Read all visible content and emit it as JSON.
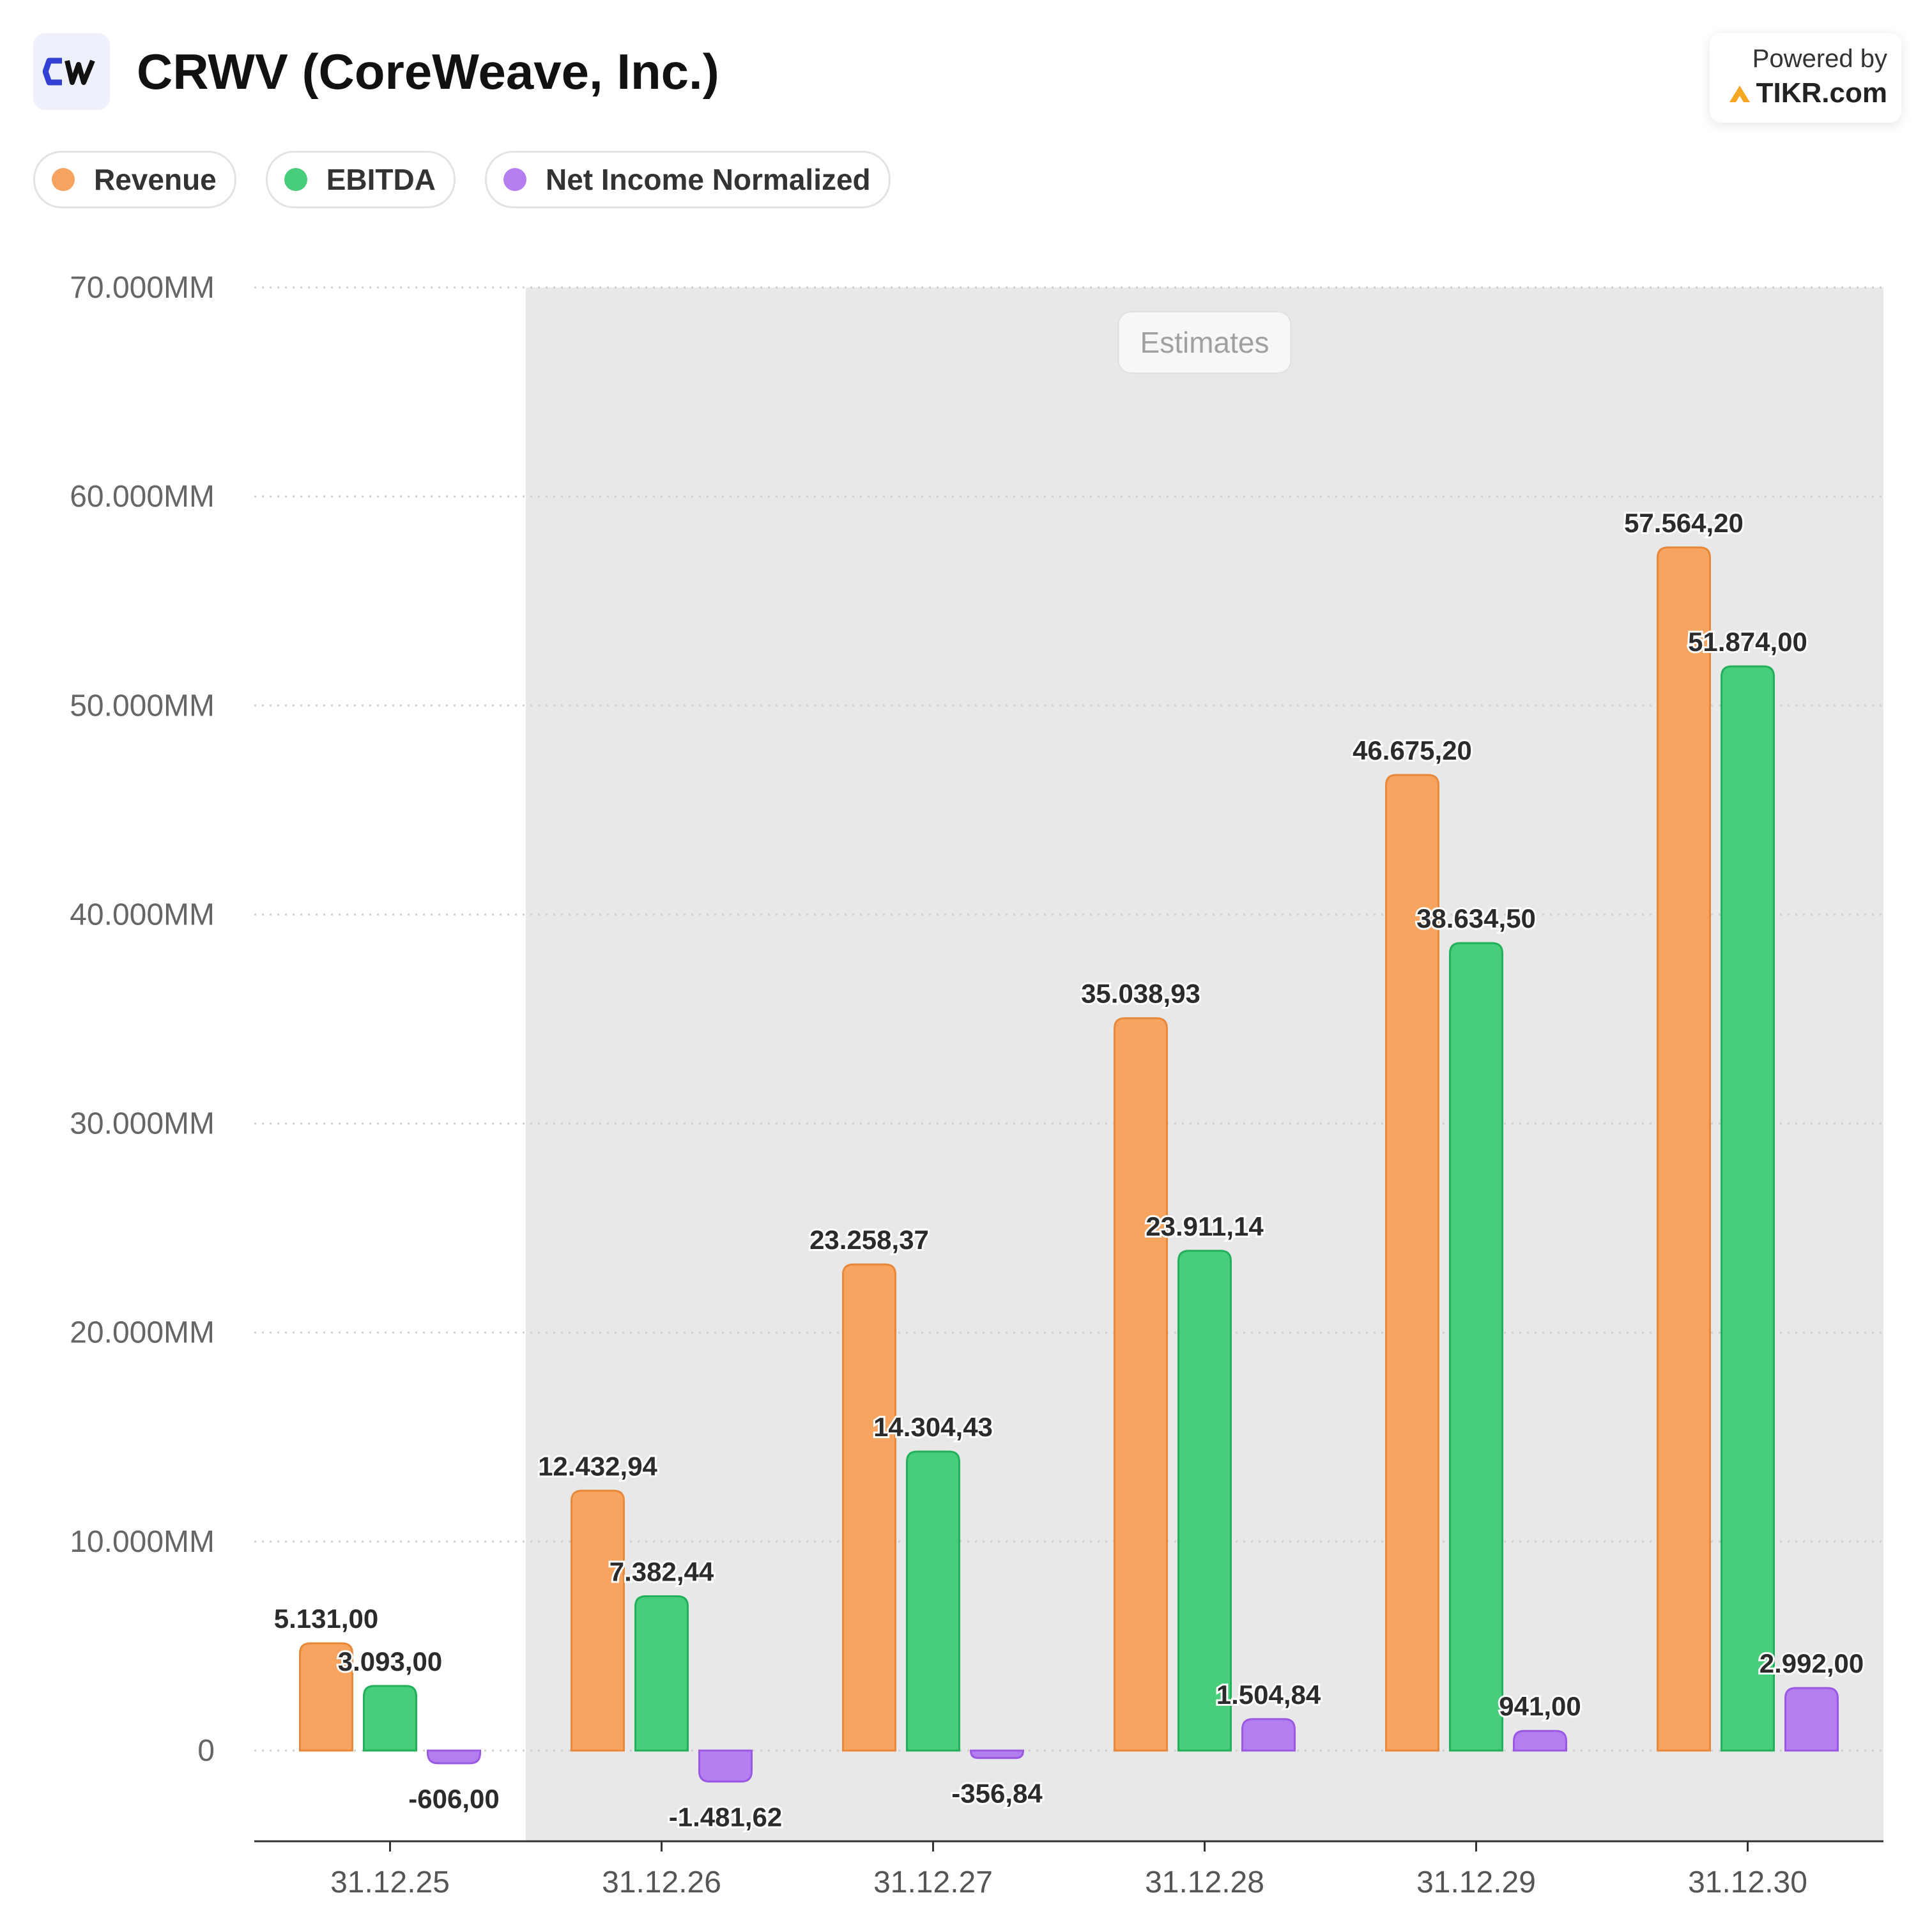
{
  "header": {
    "logo_text": "CW",
    "title": "CRWV (CoreWeave, Inc.)"
  },
  "powered": {
    "line1": "Powered by",
    "brand": "TIKR.com",
    "icon": "tikr-logo-icon"
  },
  "colors": {
    "revenue": "#f6a460",
    "revenue_stroke": "#e8883a",
    "ebitda": "#48cd7a",
    "ebitda_stroke": "#22b05a",
    "net_income": "#b57ef0",
    "net_income_stroke": "#9a58e3",
    "estimates_bg": "#e8e8e8"
  },
  "chart_data": {
    "type": "bar",
    "title": "CRWV (CoreWeave, Inc.)",
    "categories": [
      "31.12.25",
      "31.12.26",
      "31.12.27",
      "31.12.28",
      "31.12.29",
      "31.12.30"
    ],
    "series": [
      {
        "name": "Revenue",
        "values": [
          5131.0,
          12432.94,
          23258.37,
          35038.93,
          46675.2,
          57564.2
        ],
        "labels": [
          "5.131,00",
          "12.432,94",
          "23.258,37",
          "35.038,93",
          "46.675,20",
          "57.564,20"
        ]
      },
      {
        "name": "EBITDA",
        "values": [
          3093.0,
          7382.44,
          14304.43,
          23911.14,
          38634.5,
          51874.0
        ],
        "labels": [
          "3.093,00",
          "7.382,44",
          "14.304,43",
          "23.911,14",
          "38.634,50",
          "51.874,00"
        ]
      },
      {
        "name": "Net Income Normalized",
        "values": [
          -606.0,
          -1481.62,
          -356.84,
          1504.84,
          941.0,
          2992.0
        ],
        "labels": [
          "-606,00",
          "-1.481,62",
          "-356,84",
          "1.504,84",
          "941,00",
          "2.992,00"
        ]
      }
    ],
    "yticks": [
      0,
      10000,
      20000,
      30000,
      40000,
      50000,
      60000,
      70000
    ],
    "ytick_labels": [
      "0",
      "10.000MM",
      "20.000MM",
      "30.000MM",
      "40.000MM",
      "50.000MM",
      "60.000MM",
      "70.000MM"
    ],
    "ylim": [
      -4500,
      70000
    ],
    "estimates_label": "Estimates",
    "estimates_from_index": 1,
    "xlabel": "",
    "ylabel": "",
    "grid": true,
    "legend_position": "top-left"
  }
}
